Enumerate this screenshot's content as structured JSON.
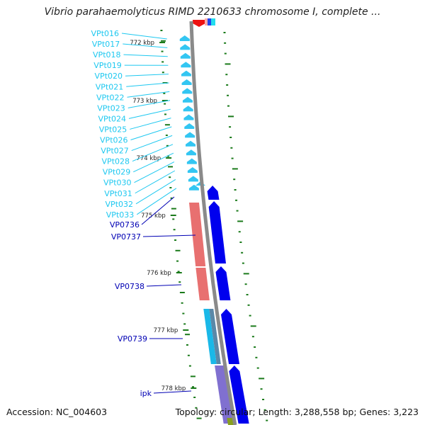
{
  "title": "Vibrio parahaemolyticus RIMD 2210633 chromosome I, complete ...",
  "footer": {
    "accession": "Accession: NC_004603",
    "topology": "Topology: circular; Length: 3,288,558 bp; Genes: 3,223"
  },
  "ticks": [
    "772 kbp",
    "773 kbp",
    "774 kbp",
    "775 kbp",
    "776 kbp",
    "777 kbp",
    "778 kbp"
  ],
  "trna_labels": [
    "VPt016",
    "VPt017",
    "VPt018",
    "VPt019",
    "VPt020",
    "VPt021",
    "VPt022",
    "VPt023",
    "VPt024",
    "VPt025",
    "VPt026",
    "VPt027",
    "VPt028",
    "VPt029",
    "VPt030",
    "VPt031",
    "VPt032",
    "VPt033"
  ],
  "cds_labels": [
    "VP0736",
    "VP0737",
    "VP0738",
    "VP0739",
    "ipk"
  ],
  "colors": {
    "trna": "#33c6f2",
    "trna_label": "#1ec8f0",
    "cds": "#0000ee",
    "cds_label": "#0000b4",
    "backbone": "#8a8a8a",
    "gc_skew": "#1a7a1a",
    "salmon": "#e87070",
    "cyan": "#1ab8e8",
    "steel": "#5a88a8",
    "purple": "#8070d0",
    "olive": "#88a020"
  }
}
